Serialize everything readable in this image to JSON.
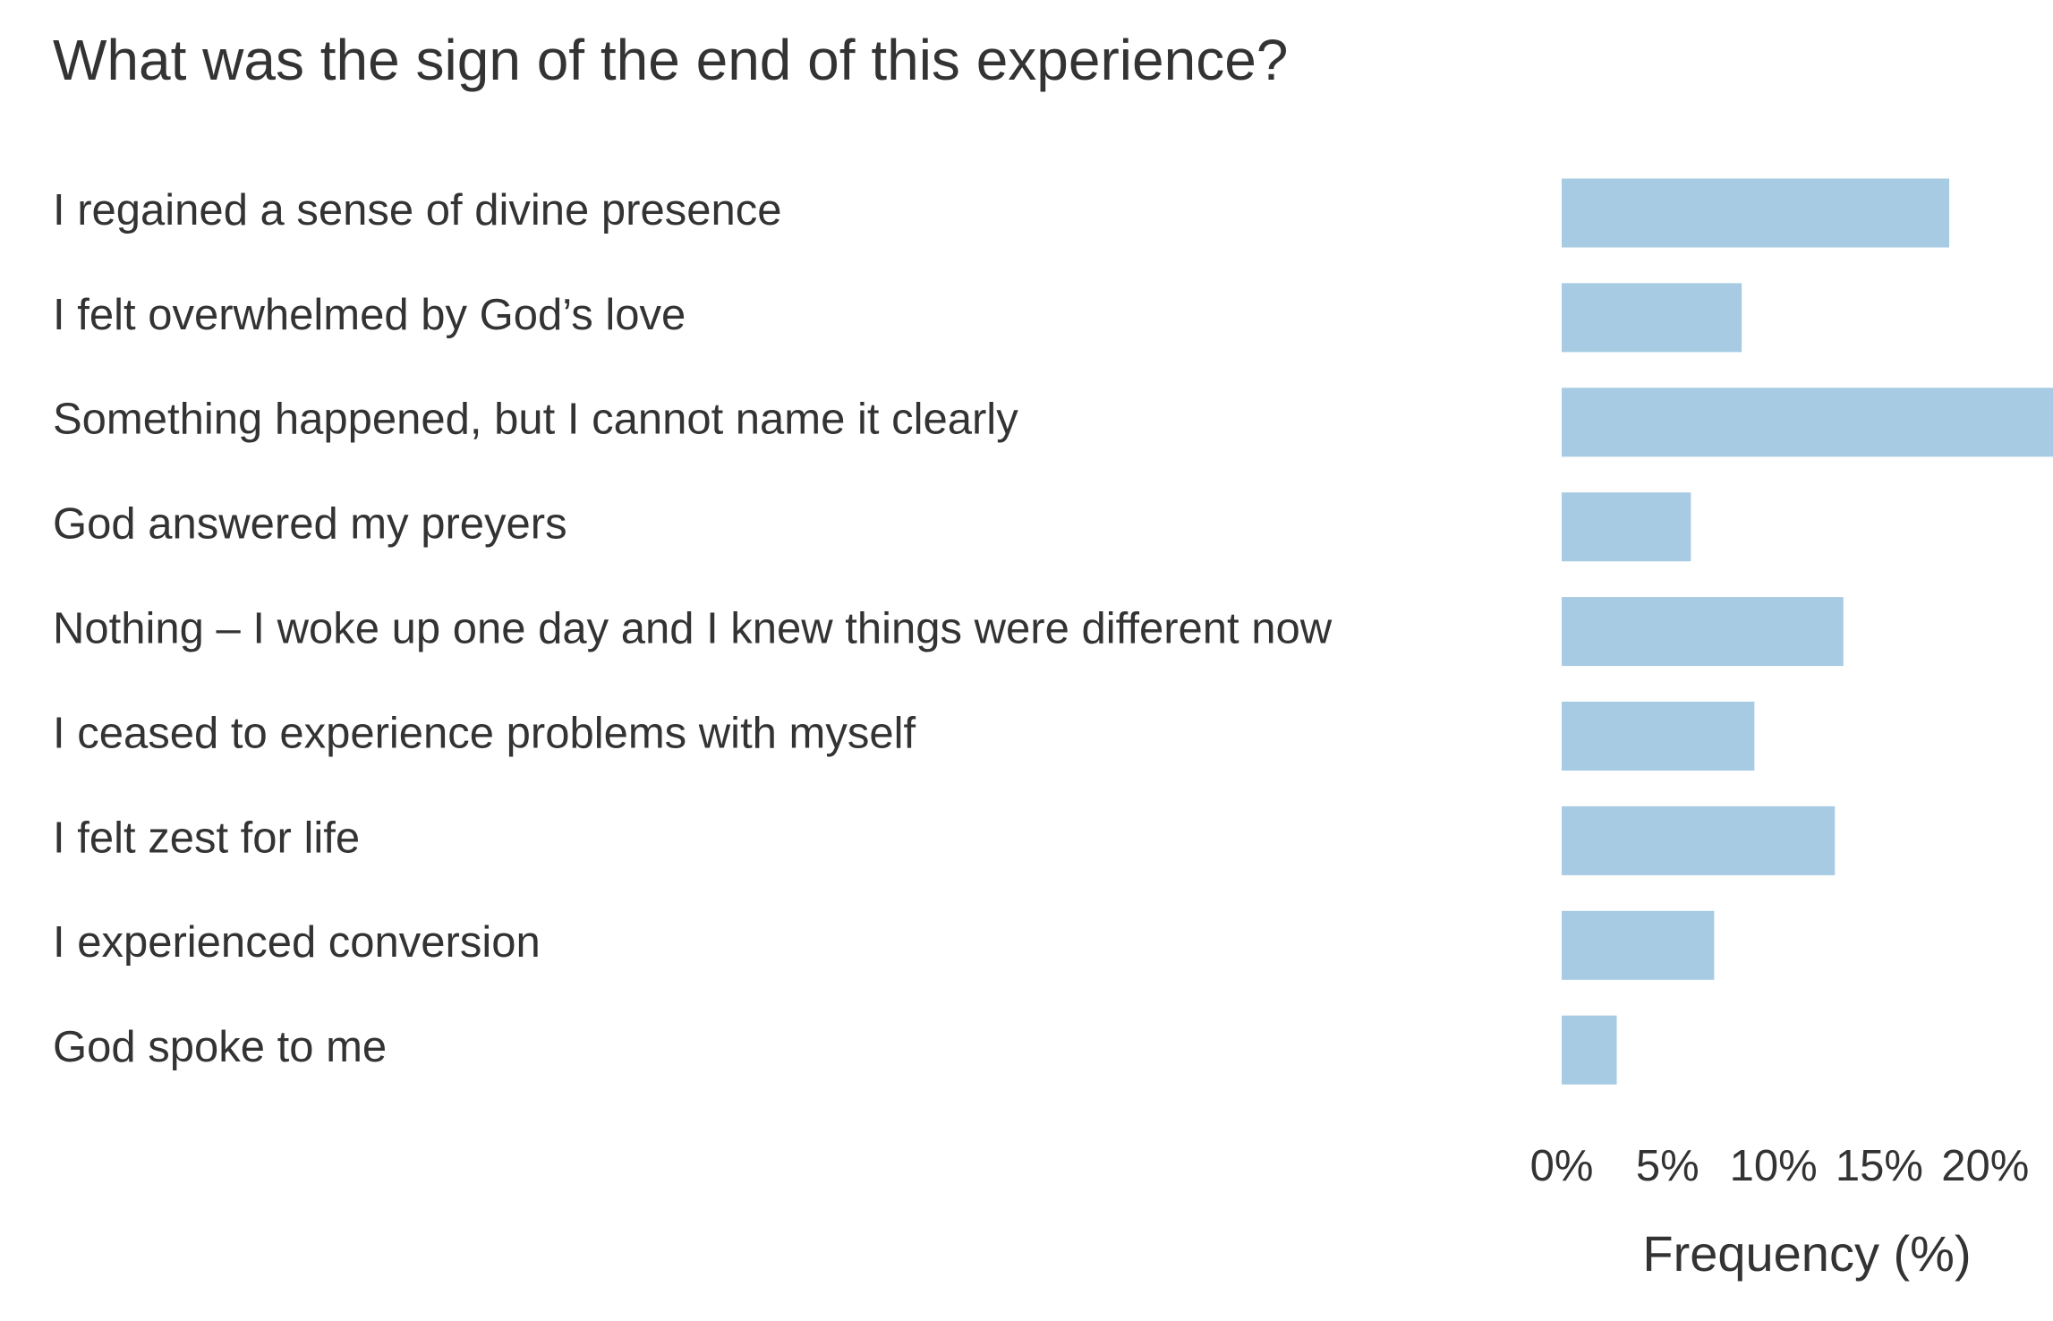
{
  "chart_data": {
    "type": "bar",
    "orientation": "horizontal",
    "title": "What was the sign of the end of this experience?",
    "categories": [
      "I regained a sense of divine presence",
      "I felt overwhelmed by God’s love",
      "Something happened, but I cannot name it clearly",
      "God answered my preyers",
      "Nothing – I woke up one day and I knew things were different now",
      "I ceased to experience problems with myself",
      "I felt zest for life",
      "I experienced conversion",
      "God spoke to me"
    ],
    "values": [
      18.3,
      8.5,
      23.2,
      6.1,
      13.3,
      9.1,
      12.9,
      7.2,
      2.6
    ],
    "color": "#a6cbe3",
    "xlabel": "Frequency (%)",
    "xlim": [
      0,
      23.2
    ],
    "xticks": [
      {
        "value": 0,
        "label": "0%"
      },
      {
        "value": 5,
        "label": "5%"
      },
      {
        "value": 10,
        "label": "10%"
      },
      {
        "value": 15,
        "label": "15%"
      },
      {
        "value": 20,
        "label": "20%"
      }
    ],
    "grid": false
  }
}
